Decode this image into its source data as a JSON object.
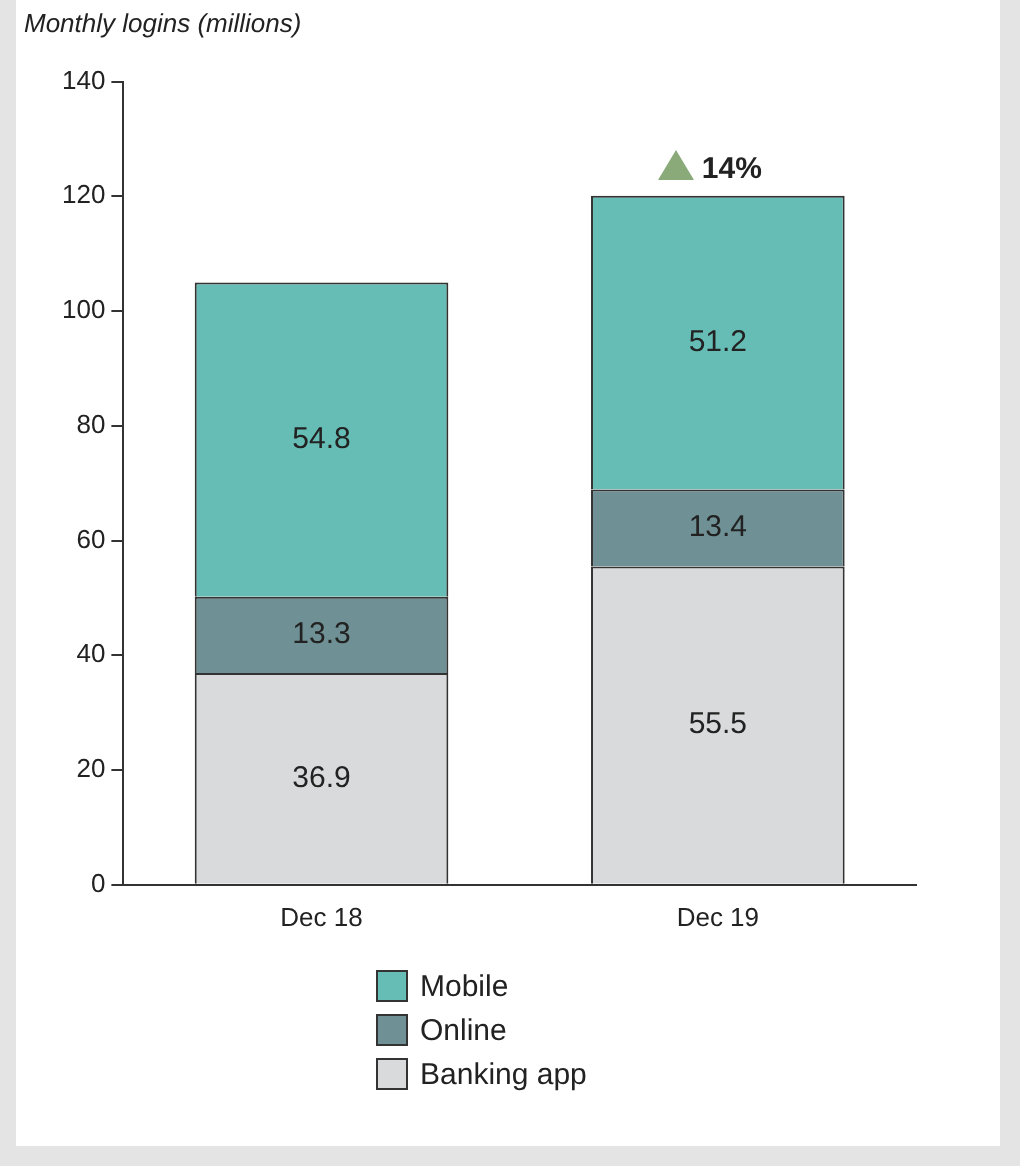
{
  "chart_data": {
    "type": "bar",
    "title": "Monthly logins (millions)",
    "categories": [
      "Dec 18",
      "Dec 19"
    ],
    "stacked": true,
    "series": [
      {
        "name": "Banking app",
        "color": "#d9dadb",
        "values": [
          36.9,
          55.5
        ]
      },
      {
        "name": "Online",
        "color": "#6f9195",
        "values": [
          13.3,
          13.4
        ]
      },
      {
        "name": "Mobile",
        "color": "#66bdb5",
        "values": [
          54.8,
          51.2
        ]
      }
    ],
    "ylim": [
      0,
      140
    ],
    "yticks": [
      0,
      20,
      40,
      60,
      80,
      100,
      120,
      140
    ],
    "grid": false,
    "legend": "bottom",
    "data_labels": true,
    "annotations": [
      {
        "text": "14%",
        "x": "Dec 19",
        "y": 120
      }
    ]
  }
}
